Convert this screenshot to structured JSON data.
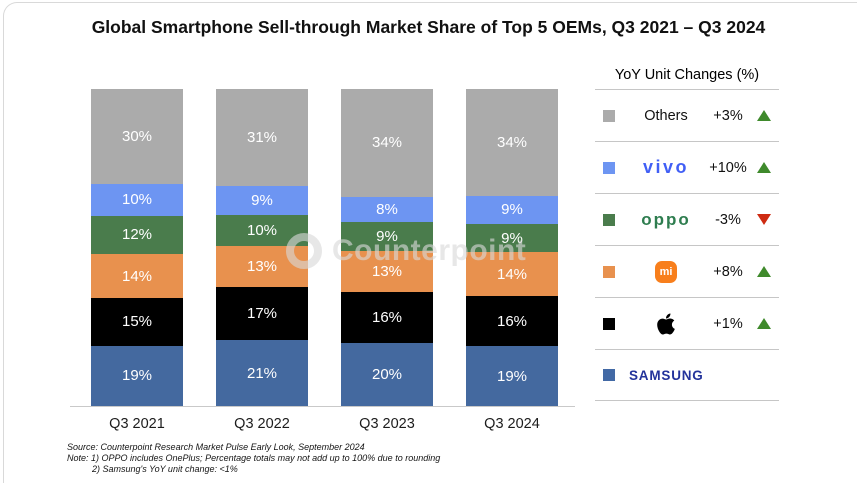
{
  "title": "Global Smartphone Sell-through Market Share of Top 5 OEMs, Q3 2021 – Q3 2024",
  "chart_data": {
    "type": "bar",
    "stacked": true,
    "unit": "%",
    "title": "Global Smartphone Sell-through Market Share of Top 5 OEMs, Q3 2021 – Q3 2024",
    "categories": [
      "Q3 2021",
      "Q3 2022",
      "Q3 2023",
      "Q3 2024"
    ],
    "series": [
      {
        "name": "Samsung",
        "color": "#44699f",
        "values": [
          19,
          21,
          20,
          19
        ]
      },
      {
        "name": "Apple",
        "color": "#000000",
        "values": [
          15,
          17,
          16,
          16
        ]
      },
      {
        "name": "Xiaomi",
        "color": "#e8914e",
        "values": [
          14,
          13,
          13,
          14
        ]
      },
      {
        "name": "OPPO",
        "color": "#4a7c4c",
        "values": [
          12,
          10,
          9,
          9
        ]
      },
      {
        "name": "vivo",
        "color": "#6d95f2",
        "values": [
          10,
          9,
          8,
          9
        ]
      },
      {
        "name": "Others",
        "color": "#ababab",
        "values": [
          30,
          31,
          34,
          34
        ]
      }
    ],
    "ylim": [
      0,
      100
    ],
    "value_label_format": "{value}%",
    "grid": false,
    "legend_position": "right"
  },
  "legend": {
    "heading": "YoY Unit Changes (%)",
    "rows": [
      {
        "name": "Others",
        "label": "Others",
        "change": "+3%",
        "direction": "up",
        "swatch": "#ababab"
      },
      {
        "name": "vivo",
        "label": "vivo",
        "change": "+10%",
        "direction": "up",
        "swatch": "#6d95f2",
        "logo_color": "#415ff5"
      },
      {
        "name": "OPPO",
        "label": "oppo",
        "change": "-3%",
        "direction": "down",
        "swatch": "#4a7c4c",
        "logo_color": "#2e7d4f"
      },
      {
        "name": "Xiaomi",
        "label": "mi",
        "change": "+8%",
        "direction": "up",
        "swatch": "#e8914e",
        "logo_color": "#f87f1c"
      },
      {
        "name": "Apple",
        "label": "",
        "change": "+1%",
        "direction": "up",
        "swatch": "#000000"
      },
      {
        "name": "Samsung",
        "label": "SAMSUNG",
        "change": "",
        "direction": "none",
        "swatch": "#4269a5",
        "logo_color": "#23339b"
      }
    ],
    "triangle_up_color": "#3f8a2c",
    "triangle_down_color": "#ce2b12"
  },
  "watermark": {
    "text": "Counterpoint"
  },
  "footnotes": {
    "source": "Source: Counterpoint Research Market Pulse Early Look, September 2024",
    "note1": "Note: 1) OPPO includes OnePlus; Percentage totals may not add up to 100% due to rounding",
    "note2": "2) Samsung's YoY unit change: <1%"
  }
}
